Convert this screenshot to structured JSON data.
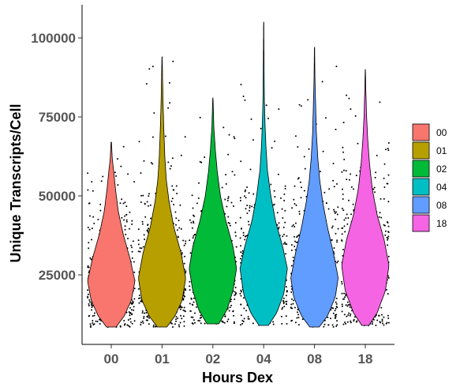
{
  "chart_data": {
    "type": "violin",
    "title": "",
    "xlabel": "Hours Dex",
    "ylabel": "Unique Transcripts/Cell",
    "categories": [
      "00",
      "01",
      "02",
      "04",
      "08",
      "18"
    ],
    "colors": [
      "#F8766D",
      "#B79F00",
      "#00BA38",
      "#00BFC4",
      "#619CFF",
      "#F564E3"
    ],
    "yticks": [
      25000,
      50000,
      75000,
      100000
    ],
    "ytick_labels": [
      "25000",
      "50000",
      "75000",
      "100000"
    ],
    "ylim": [
      0,
      110000
    ],
    "legend_position": "right",
    "grid": false,
    "jitter_points": true,
    "series": [
      {
        "name": "00",
        "min": 8500,
        "max": 67000,
        "median": 23000,
        "profile": [
          [
            8500,
            0.2
          ],
          [
            12000,
            0.55
          ],
          [
            17000,
            0.85
          ],
          [
            23000,
            1.0
          ],
          [
            30000,
            0.8
          ],
          [
            38000,
            0.5
          ],
          [
            45000,
            0.3
          ],
          [
            52000,
            0.18
          ],
          [
            58000,
            0.1
          ],
          [
            62000,
            0.04
          ],
          [
            67000,
            0.01
          ]
        ]
      },
      {
        "name": "01",
        "min": 8500,
        "max": 94000,
        "median": 24000,
        "profile": [
          [
            8500,
            0.2
          ],
          [
            12000,
            0.55
          ],
          [
            17000,
            0.85
          ],
          [
            24000,
            1.0
          ],
          [
            32000,
            0.8
          ],
          [
            40000,
            0.5
          ],
          [
            48000,
            0.3
          ],
          [
            55000,
            0.18
          ],
          [
            62000,
            0.12
          ],
          [
            72000,
            0.07
          ],
          [
            80000,
            0.04
          ],
          [
            88000,
            0.02
          ],
          [
            94000,
            0.005
          ]
        ]
      },
      {
        "name": "02",
        "min": 9500,
        "max": 81000,
        "median": 27000,
        "profile": [
          [
            9500,
            0.25
          ],
          [
            14000,
            0.6
          ],
          [
            20000,
            0.85
          ],
          [
            27000,
            1.0
          ],
          [
            34000,
            0.85
          ],
          [
            42000,
            0.55
          ],
          [
            50000,
            0.32
          ],
          [
            58000,
            0.18
          ],
          [
            65000,
            0.1
          ],
          [
            72000,
            0.04
          ],
          [
            81000,
            0.005
          ]
        ]
      },
      {
        "name": "04",
        "min": 9000,
        "max": 105000,
        "median": 27000,
        "profile": [
          [
            9000,
            0.2
          ],
          [
            13000,
            0.55
          ],
          [
            19000,
            0.85
          ],
          [
            27000,
            1.0
          ],
          [
            34000,
            0.8
          ],
          [
            42000,
            0.5
          ],
          [
            50000,
            0.3
          ],
          [
            58000,
            0.16
          ],
          [
            65000,
            0.1
          ],
          [
            72000,
            0.06
          ],
          [
            80000,
            0.03
          ],
          [
            92000,
            0.015
          ],
          [
            105000,
            0.004
          ]
        ]
      },
      {
        "name": "08",
        "min": 8500,
        "max": 97000,
        "median": 24000,
        "profile": [
          [
            8500,
            0.2
          ],
          [
            12000,
            0.55
          ],
          [
            18000,
            0.88
          ],
          [
            24000,
            1.0
          ],
          [
            32000,
            0.8
          ],
          [
            40000,
            0.55
          ],
          [
            48000,
            0.35
          ],
          [
            55000,
            0.22
          ],
          [
            62000,
            0.14
          ],
          [
            70000,
            0.08
          ],
          [
            78000,
            0.05
          ],
          [
            87000,
            0.02
          ],
          [
            97000,
            0.005
          ]
        ]
      },
      {
        "name": "18",
        "min": 9000,
        "max": 90000,
        "median": 28000,
        "profile": [
          [
            9000,
            0.15
          ],
          [
            13000,
            0.5
          ],
          [
            20000,
            0.85
          ],
          [
            28000,
            1.0
          ],
          [
            36000,
            0.8
          ],
          [
            44000,
            0.5
          ],
          [
            52000,
            0.3
          ],
          [
            60000,
            0.18
          ],
          [
            68000,
            0.1
          ],
          [
            76000,
            0.05
          ],
          [
            84000,
            0.02
          ],
          [
            90000,
            0.005
          ]
        ]
      }
    ]
  }
}
